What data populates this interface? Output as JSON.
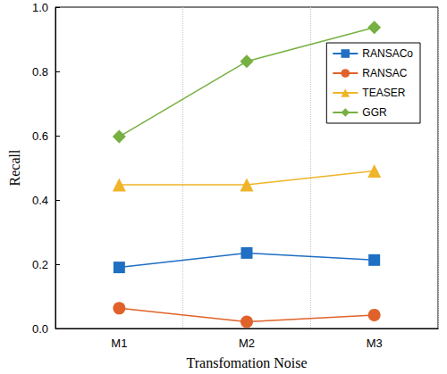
{
  "chart_data": {
    "type": "line",
    "x_label": "Transfomation Noise",
    "y_label": "Recall",
    "categories": [
      "M1",
      "M2",
      "M3"
    ],
    "series": [
      {
        "name": "RANSACo",
        "color": "#1f6fc4",
        "marker": "square",
        "line_style": "solid",
        "values": [
          0.19,
          0.235,
          0.213
        ]
      },
      {
        "name": "RANSAC",
        "color": "#e0622a",
        "marker": "circle",
        "line_style": "solid",
        "values": [
          0.063,
          0.021,
          0.042
        ]
      },
      {
        "name": "TEASER",
        "color": "#f0b429",
        "marker": "triangle",
        "line_style": "solid",
        "values": [
          0.447,
          0.447,
          0.49
        ]
      },
      {
        "name": "GGR",
        "color": "#76b041",
        "marker": "diamond",
        "line_style": "solid",
        "values": [
          0.597,
          0.831,
          0.937
        ]
      }
    ],
    "ylim": [
      0,
      1
    ],
    "yticks": [
      {
        "value": 0,
        "label": "0.0"
      },
      0.2,
      0.4,
      0.6,
      0.8,
      {
        "value": 1,
        "label": "1.0"
      }
    ],
    "grid": "x",
    "legend": "upper right"
  }
}
